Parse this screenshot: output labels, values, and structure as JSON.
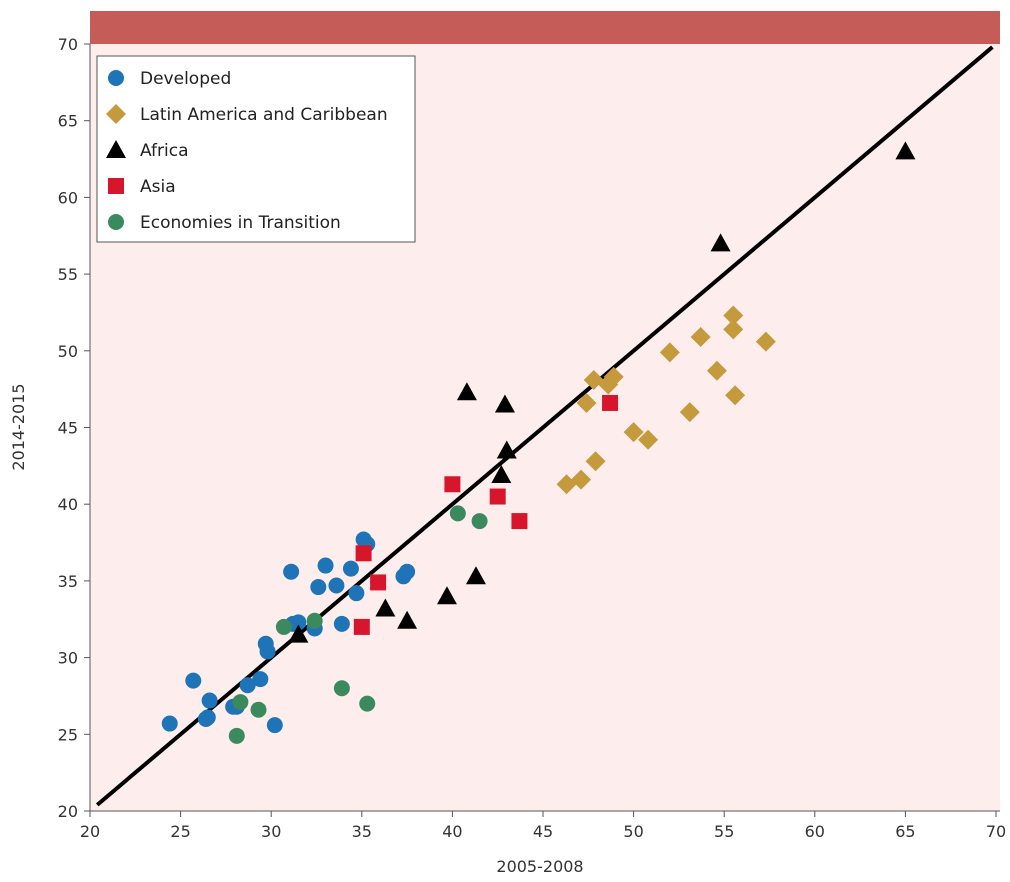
{
  "chart_data": {
    "type": "scatter",
    "title": "",
    "xlabel": "2005-2008",
    "ylabel": "2014-2015",
    "xlim": [
      20,
      70
    ],
    "ylim": [
      20,
      70
    ],
    "xticks": [
      20,
      25,
      30,
      35,
      40,
      45,
      50,
      55,
      60,
      65,
      70
    ],
    "yticks": [
      20,
      25,
      30,
      35,
      40,
      45,
      50,
      55,
      60,
      65,
      70
    ],
    "grid": false,
    "legend_position": "top-left",
    "plot_background": "#fdeeed",
    "header_band_color": "#c65c57",
    "reference_line": {
      "x": [
        20.4,
        69.8
      ],
      "y": [
        20.4,
        69.8
      ],
      "color": "#000000"
    },
    "series": [
      {
        "name": "Developed",
        "marker": "circle",
        "color": "#1f73b7",
        "points": [
          [
            24.4,
            25.7
          ],
          [
            25.7,
            28.5
          ],
          [
            26.4,
            26.0
          ],
          [
            26.5,
            26.1
          ],
          [
            26.6,
            27.2
          ],
          [
            27.9,
            26.8
          ],
          [
            28.1,
            26.8
          ],
          [
            28.7,
            28.2
          ],
          [
            29.4,
            28.6
          ],
          [
            29.7,
            30.9
          ],
          [
            29.8,
            30.4
          ],
          [
            30.2,
            25.6
          ],
          [
            31.1,
            35.6
          ],
          [
            31.2,
            32.2
          ],
          [
            31.5,
            32.3
          ],
          [
            32.4,
            31.9
          ],
          [
            32.6,
            34.6
          ],
          [
            33.0,
            36.0
          ],
          [
            33.6,
            34.7
          ],
          [
            33.9,
            32.2
          ],
          [
            34.4,
            35.8
          ],
          [
            34.7,
            34.2
          ],
          [
            35.1,
            37.7
          ],
          [
            35.3,
            37.4
          ],
          [
            37.3,
            35.3
          ],
          [
            37.5,
            35.6
          ]
        ]
      },
      {
        "name": "Latin America and Caribbean",
        "marker": "diamond",
        "color": "#c49a3c",
        "points": [
          [
            46.3,
            41.3
          ],
          [
            47.1,
            41.6
          ],
          [
            47.4,
            46.6
          ],
          [
            47.8,
            48.1
          ],
          [
            47.9,
            42.8
          ],
          [
            48.6,
            47.8
          ],
          [
            48.9,
            48.3
          ],
          [
            50.0,
            44.7
          ],
          [
            50.8,
            44.2
          ],
          [
            52.0,
            49.9
          ],
          [
            53.1,
            46.0
          ],
          [
            53.7,
            50.9
          ],
          [
            54.6,
            48.7
          ],
          [
            55.5,
            52.3
          ],
          [
            55.5,
            51.4
          ],
          [
            55.6,
            47.1
          ],
          [
            57.3,
            50.6
          ]
        ]
      },
      {
        "name": "Africa",
        "marker": "triangle",
        "color": "#000000",
        "points": [
          [
            31.5,
            31.5
          ],
          [
            36.3,
            33.2
          ],
          [
            37.5,
            32.4
          ],
          [
            39.7,
            34.0
          ],
          [
            40.8,
            47.3
          ],
          [
            41.3,
            35.3
          ],
          [
            42.7,
            41.9
          ],
          [
            42.9,
            46.5
          ],
          [
            43.0,
            43.5
          ],
          [
            54.8,
            57.0
          ],
          [
            65.0,
            63.0
          ]
        ]
      },
      {
        "name": "Asia",
        "marker": "square",
        "color": "#d7162c",
        "points": [
          [
            35.0,
            32.0
          ],
          [
            35.1,
            36.8
          ],
          [
            35.9,
            34.9
          ],
          [
            40.0,
            41.3
          ],
          [
            42.5,
            40.5
          ],
          [
            43.7,
            38.9
          ],
          [
            48.7,
            46.6
          ]
        ]
      },
      {
        "name": "Economies in Transition",
        "marker": "circle",
        "color": "#3a8a5e",
        "points": [
          [
            28.1,
            24.9
          ],
          [
            28.3,
            27.1
          ],
          [
            29.3,
            26.6
          ],
          [
            30.7,
            32.0
          ],
          [
            32.4,
            32.4
          ],
          [
            33.9,
            28.0
          ],
          [
            35.3,
            27.0
          ],
          [
            40.3,
            39.4
          ],
          [
            41.5,
            38.9
          ]
        ]
      }
    ]
  }
}
